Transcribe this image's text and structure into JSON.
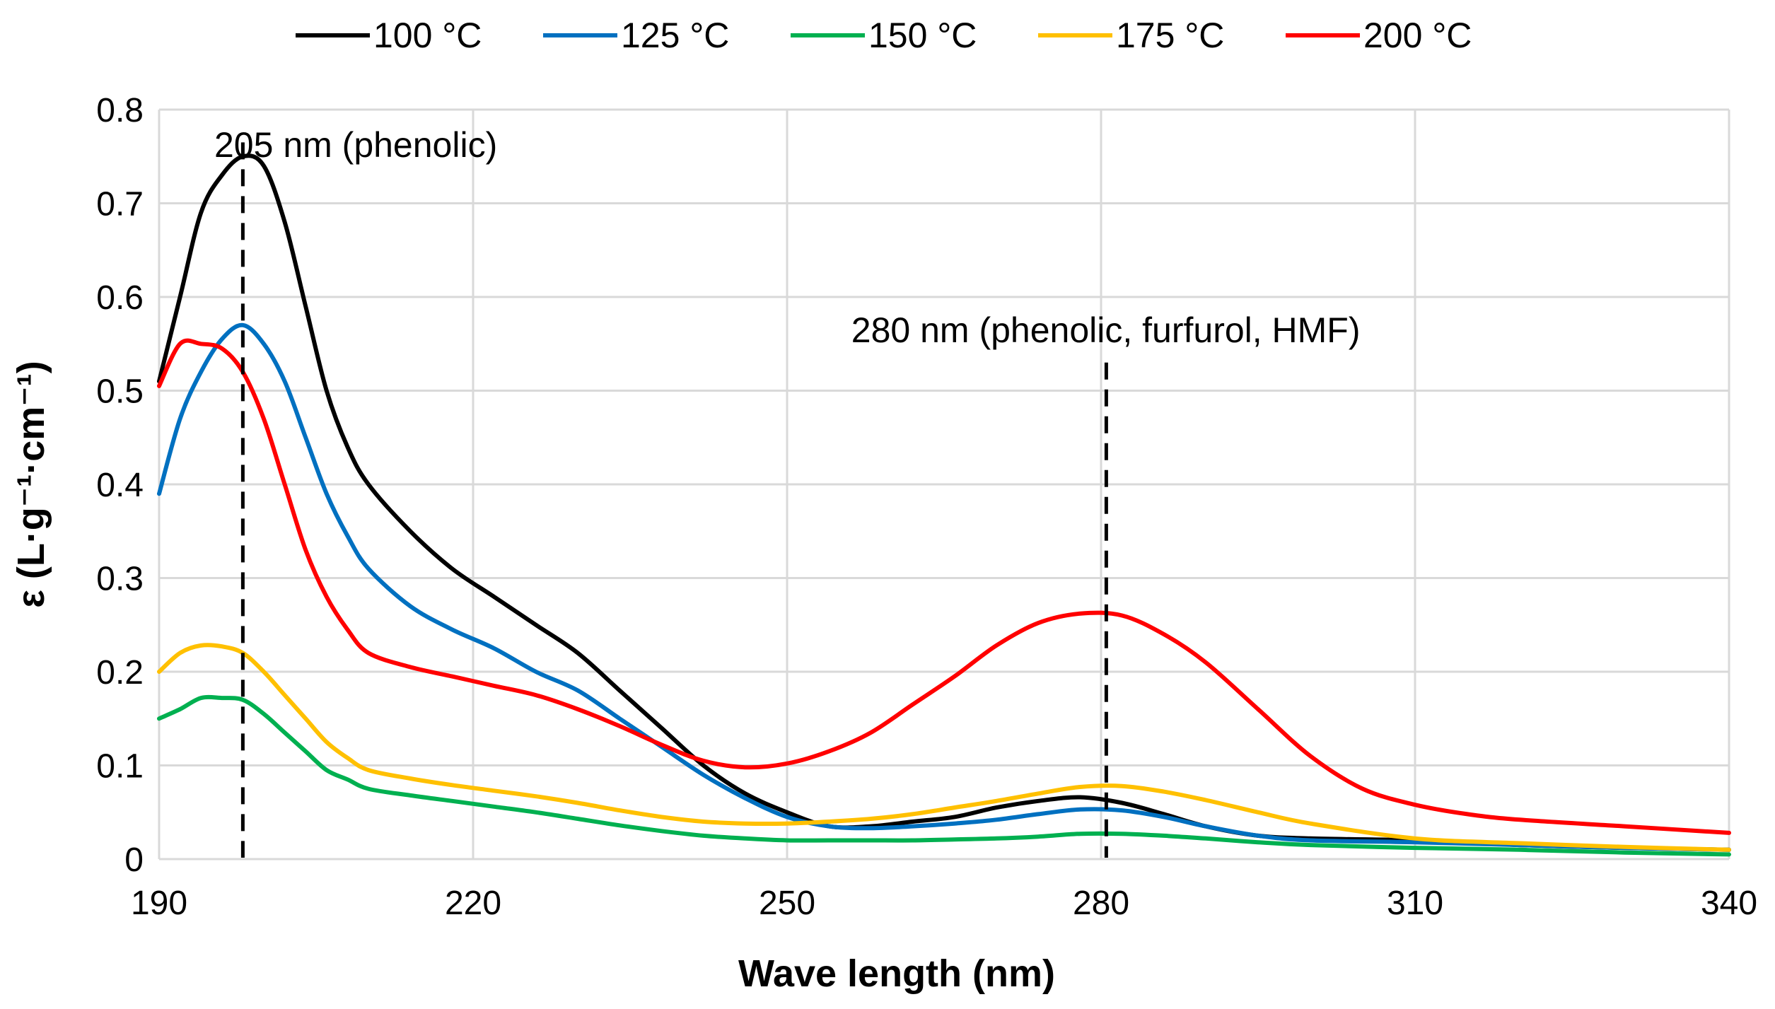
{
  "chart_data": {
    "type": "line",
    "title": "",
    "xlabel": "Wave length (nm)",
    "ylabel": "ε (L·g⁻¹·cm⁻¹)",
    "xlim": [
      190,
      340
    ],
    "ylim": [
      0,
      0.8
    ],
    "x_ticks": [
      190,
      220,
      250,
      280,
      310,
      340
    ],
    "y_ticks": [
      0,
      0.1,
      0.2,
      0.3,
      0.4,
      0.5,
      0.6,
      0.7,
      0.8
    ],
    "x_tick_labels": [
      "190",
      "220",
      "250",
      "280",
      "310",
      "340"
    ],
    "y_tick_labels": [
      "0",
      "0.1",
      "0.2",
      "0.3",
      "0.4",
      "0.5",
      "0.6",
      "0.7",
      "0.8"
    ],
    "grid": true,
    "legend_position": "top-center",
    "annotations": [
      {
        "label": "205 nm (phenolic)",
        "x": 198
      },
      {
        "label": "280 nm (phenolic, furfurol, HMF)",
        "x": 280.5
      }
    ],
    "series": [
      {
        "name": "100 °C",
        "color": "#000000",
        "x": [
          190,
          192,
          194,
          196,
          198,
          200,
          202,
          204,
          206,
          208,
          210,
          214,
          218,
          222,
          226,
          230,
          234,
          238,
          242,
          246,
          250,
          254,
          258,
          262,
          266,
          270,
          274,
          278,
          282,
          286,
          290,
          295,
          300,
          310,
          320,
          330,
          340
        ],
        "y": [
          0.51,
          0.6,
          0.69,
          0.73,
          0.75,
          0.74,
          0.68,
          0.59,
          0.5,
          0.44,
          0.4,
          0.35,
          0.31,
          0.28,
          0.25,
          0.22,
          0.18,
          0.14,
          0.1,
          0.07,
          0.05,
          0.035,
          0.035,
          0.04,
          0.045,
          0.055,
          0.062,
          0.066,
          0.06,
          0.048,
          0.035,
          0.025,
          0.022,
          0.02,
          0.015,
          0.012,
          0.01
        ]
      },
      {
        "name": "125 °C",
        "color": "#0070C0",
        "x": [
          190,
          192,
          194,
          196,
          198,
          200,
          202,
          204,
          206,
          208,
          210,
          214,
          218,
          222,
          226,
          230,
          234,
          238,
          242,
          246,
          250,
          254,
          258,
          262,
          266,
          270,
          274,
          278,
          282,
          286,
          290,
          295,
          300,
          310,
          320,
          330,
          340
        ],
        "y": [
          0.39,
          0.47,
          0.52,
          0.555,
          0.57,
          0.55,
          0.51,
          0.45,
          0.39,
          0.345,
          0.31,
          0.27,
          0.245,
          0.225,
          0.2,
          0.18,
          0.15,
          0.12,
          0.09,
          0.065,
          0.045,
          0.035,
          0.033,
          0.035,
          0.038,
          0.042,
          0.048,
          0.053,
          0.052,
          0.045,
          0.035,
          0.025,
          0.02,
          0.018,
          0.015,
          0.012,
          0.01
        ]
      },
      {
        "name": "150 °C",
        "color": "#00B050",
        "x": [
          190,
          192,
          194,
          196,
          198,
          200,
          202,
          204,
          206,
          208,
          210,
          214,
          218,
          222,
          226,
          230,
          234,
          238,
          242,
          246,
          250,
          254,
          258,
          262,
          266,
          270,
          274,
          278,
          282,
          286,
          290,
          295,
          300,
          310,
          320,
          330,
          340
        ],
        "y": [
          0.15,
          0.16,
          0.172,
          0.172,
          0.17,
          0.155,
          0.135,
          0.115,
          0.095,
          0.085,
          0.075,
          0.068,
          0.062,
          0.056,
          0.05,
          0.043,
          0.036,
          0.03,
          0.025,
          0.022,
          0.02,
          0.02,
          0.02,
          0.02,
          0.021,
          0.022,
          0.024,
          0.027,
          0.027,
          0.025,
          0.022,
          0.018,
          0.015,
          0.012,
          0.01,
          0.007,
          0.005
        ]
      },
      {
        "name": "175 °C",
        "color": "#FFC000",
        "x": [
          190,
          192,
          194,
          196,
          198,
          200,
          202,
          204,
          206,
          208,
          210,
          214,
          218,
          222,
          226,
          230,
          234,
          238,
          242,
          246,
          250,
          254,
          258,
          262,
          266,
          270,
          274,
          278,
          282,
          286,
          290,
          295,
          300,
          310,
          320,
          330,
          340
        ],
        "y": [
          0.2,
          0.22,
          0.228,
          0.227,
          0.22,
          0.2,
          0.175,
          0.15,
          0.125,
          0.108,
          0.095,
          0.086,
          0.079,
          0.073,
          0.067,
          0.06,
          0.052,
          0.045,
          0.04,
          0.038,
          0.038,
          0.04,
          0.043,
          0.048,
          0.055,
          0.062,
          0.07,
          0.077,
          0.078,
          0.072,
          0.063,
          0.05,
          0.038,
          0.022,
          0.017,
          0.013,
          0.01
        ]
      },
      {
        "name": "200 °C",
        "color": "#FF0000",
        "x": [
          190,
          192,
          194,
          196,
          198,
          200,
          202,
          204,
          206,
          208,
          210,
          214,
          218,
          222,
          226,
          230,
          234,
          238,
          242,
          246,
          250,
          254,
          258,
          262,
          266,
          270,
          274,
          278,
          282,
          286,
          290,
          295,
          300,
          305,
          310,
          315,
          320,
          330,
          340
        ],
        "y": [
          0.505,
          0.55,
          0.55,
          0.545,
          0.52,
          0.47,
          0.4,
          0.33,
          0.28,
          0.245,
          0.22,
          0.205,
          0.195,
          0.185,
          0.175,
          0.16,
          0.142,
          0.122,
          0.105,
          0.098,
          0.102,
          0.115,
          0.135,
          0.165,
          0.195,
          0.228,
          0.252,
          0.262,
          0.26,
          0.24,
          0.21,
          0.16,
          0.11,
          0.075,
          0.058,
          0.048,
          0.042,
          0.035,
          0.028
        ]
      }
    ]
  }
}
